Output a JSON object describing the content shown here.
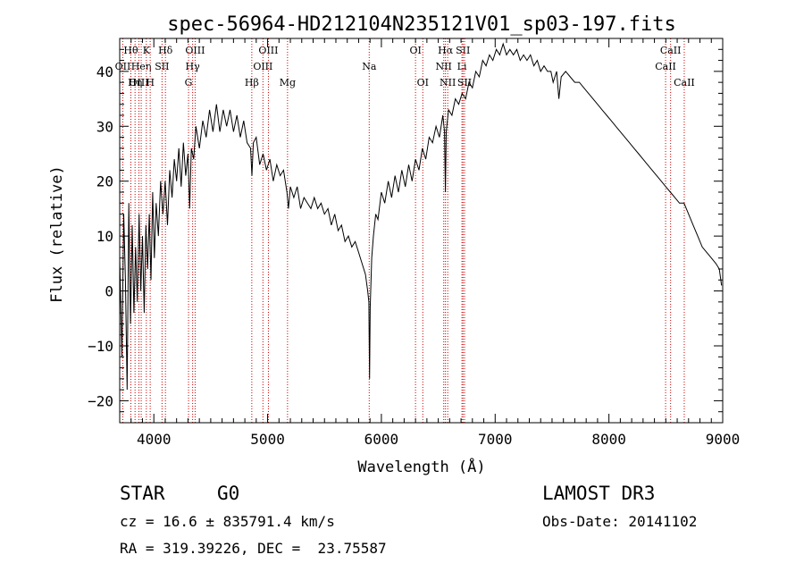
{
  "chart_data": {
    "type": "line",
    "title": "spec-56964-HD212104N235121V01_sp03-197.fits",
    "xlabel": "Wavelength (Å)",
    "ylabel": "Flux (relative)",
    "xlim": [
      3700,
      9000
    ],
    "ylim": [
      -24,
      46
    ],
    "x_ticks": [
      4000,
      5000,
      6000,
      7000,
      8000,
      9000
    ],
    "x_tick_labels": [
      "4000",
      "5000",
      "6000",
      "7000",
      "8000",
      "9000"
    ],
    "y_ticks": [
      -20,
      -10,
      0,
      10,
      20,
      30,
      40
    ],
    "y_tick_labels": [
      "−20",
      "−10",
      "0",
      "10",
      "20",
      "30",
      "40"
    ],
    "line_color": "#000000",
    "marker_color": "#cc0000",
    "series": [
      {
        "name": "flux",
        "points": [
          [
            3700,
            6
          ],
          [
            3720,
            -12
          ],
          [
            3735,
            14
          ],
          [
            3750,
            2
          ],
          [
            3765,
            -18
          ],
          [
            3780,
            16
          ],
          [
            3795,
            -6
          ],
          [
            3810,
            12
          ],
          [
            3825,
            -4
          ],
          [
            3840,
            8
          ],
          [
            3855,
            -2
          ],
          [
            3870,
            14
          ],
          [
            3885,
            0
          ],
          [
            3900,
            10
          ],
          [
            3915,
            -4
          ],
          [
            3930,
            12
          ],
          [
            3945,
            4
          ],
          [
            3960,
            14
          ],
          [
            3975,
            2
          ],
          [
            3990,
            18
          ],
          [
            4005,
            6
          ],
          [
            4020,
            16
          ],
          [
            4040,
            10
          ],
          [
            4060,
            20
          ],
          [
            4080,
            14
          ],
          [
            4100,
            20
          ],
          [
            4120,
            12
          ],
          [
            4140,
            22
          ],
          [
            4160,
            17
          ],
          [
            4180,
            24
          ],
          [
            4200,
            20
          ],
          [
            4220,
            26
          ],
          [
            4240,
            19
          ],
          [
            4260,
            27
          ],
          [
            4280,
            21
          ],
          [
            4300,
            25
          ],
          [
            4315,
            15
          ],
          [
            4330,
            26
          ],
          [
            4350,
            24
          ],
          [
            4370,
            30
          ],
          [
            4400,
            26
          ],
          [
            4430,
            31
          ],
          [
            4460,
            28
          ],
          [
            4490,
            33
          ],
          [
            4520,
            29
          ],
          [
            4550,
            34
          ],
          [
            4580,
            29
          ],
          [
            4610,
            33
          ],
          [
            4640,
            30
          ],
          [
            4670,
            33
          ],
          [
            4700,
            29
          ],
          [
            4730,
            32
          ],
          [
            4760,
            28
          ],
          [
            4790,
            31
          ],
          [
            4820,
            27
          ],
          [
            4850,
            26
          ],
          [
            4862,
            21
          ],
          [
            4875,
            27
          ],
          [
            4900,
            28
          ],
          [
            4930,
            23
          ],
          [
            4960,
            25
          ],
          [
            4990,
            22
          ],
          [
            5020,
            24
          ],
          [
            5050,
            20
          ],
          [
            5080,
            23
          ],
          [
            5110,
            21
          ],
          [
            5140,
            22
          ],
          [
            5170,
            18
          ],
          [
            5183,
            15
          ],
          [
            5200,
            19
          ],
          [
            5230,
            17
          ],
          [
            5260,
            19
          ],
          [
            5290,
            15
          ],
          [
            5320,
            17
          ],
          [
            5350,
            16
          ],
          [
            5380,
            15
          ],
          [
            5410,
            17
          ],
          [
            5440,
            15
          ],
          [
            5470,
            16
          ],
          [
            5500,
            14
          ],
          [
            5530,
            15
          ],
          [
            5560,
            12
          ],
          [
            5590,
            14
          ],
          [
            5620,
            11
          ],
          [
            5650,
            12
          ],
          [
            5680,
            9
          ],
          [
            5710,
            10
          ],
          [
            5740,
            8
          ],
          [
            5770,
            9
          ],
          [
            5800,
            7
          ],
          [
            5830,
            5
          ],
          [
            5860,
            3
          ],
          [
            5880,
            0
          ],
          [
            5890,
            -2
          ],
          [
            5896,
            -16
          ],
          [
            5902,
            -3
          ],
          [
            5915,
            6
          ],
          [
            5930,
            10
          ],
          [
            5950,
            14
          ],
          [
            5970,
            13
          ],
          [
            6000,
            18
          ],
          [
            6030,
            16
          ],
          [
            6060,
            20
          ],
          [
            6090,
            17
          ],
          [
            6120,
            21
          ],
          [
            6150,
            18
          ],
          [
            6180,
            22
          ],
          [
            6210,
            19
          ],
          [
            6240,
            23
          ],
          [
            6270,
            20
          ],
          [
            6300,
            24
          ],
          [
            6330,
            22
          ],
          [
            6360,
            26
          ],
          [
            6390,
            24
          ],
          [
            6420,
            28
          ],
          [
            6450,
            27
          ],
          [
            6480,
            30
          ],
          [
            6510,
            28
          ],
          [
            6540,
            32
          ],
          [
            6555,
            29
          ],
          [
            6563,
            18
          ],
          [
            6570,
            29
          ],
          [
            6590,
            33
          ],
          [
            6620,
            32
          ],
          [
            6650,
            35
          ],
          [
            6680,
            34
          ],
          [
            6710,
            36
          ],
          [
            6740,
            35
          ],
          [
            6770,
            38
          ],
          [
            6800,
            37
          ],
          [
            6830,
            40
          ],
          [
            6860,
            39
          ],
          [
            6890,
            42
          ],
          [
            6920,
            41
          ],
          [
            6950,
            43
          ],
          [
            6980,
            42
          ],
          [
            7010,
            44
          ],
          [
            7040,
            43
          ],
          [
            7070,
            45
          ],
          [
            7100,
            43
          ],
          [
            7130,
            44
          ],
          [
            7160,
            43
          ],
          [
            7190,
            44
          ],
          [
            7220,
            42
          ],
          [
            7250,
            43
          ],
          [
            7280,
            42
          ],
          [
            7310,
            43
          ],
          [
            7340,
            41
          ],
          [
            7370,
            42
          ],
          [
            7400,
            40
          ],
          [
            7430,
            41
          ],
          [
            7460,
            40
          ],
          [
            7490,
            40
          ],
          [
            7510,
            38
          ],
          [
            7540,
            40
          ],
          [
            7560,
            35
          ],
          [
            7580,
            39
          ],
          [
            7620,
            40
          ],
          [
            7660,
            39
          ],
          [
            7700,
            38
          ],
          [
            7740,
            38
          ],
          [
            7780,
            37
          ],
          [
            7820,
            36
          ],
          [
            7860,
            35
          ],
          [
            7900,
            34
          ],
          [
            7940,
            33
          ],
          [
            7980,
            32
          ],
          [
            8020,
            31
          ],
          [
            8060,
            30
          ],
          [
            8100,
            29
          ],
          [
            8140,
            28
          ],
          [
            8180,
            27
          ],
          [
            8220,
            26
          ],
          [
            8260,
            25
          ],
          [
            8300,
            24
          ],
          [
            8340,
            23
          ],
          [
            8380,
            22
          ],
          [
            8420,
            21
          ],
          [
            8460,
            20
          ],
          [
            8500,
            19
          ],
          [
            8540,
            18
          ],
          [
            8580,
            17
          ],
          [
            8620,
            16
          ],
          [
            8660,
            16
          ],
          [
            8700,
            14
          ],
          [
            8740,
            12
          ],
          [
            8780,
            10
          ],
          [
            8820,
            8
          ],
          [
            8860,
            7
          ],
          [
            8900,
            6
          ],
          [
            8940,
            5
          ],
          [
            8970,
            4
          ],
          [
            8990,
            1
          ]
        ]
      }
    ],
    "line_markers": [
      {
        "label": "Hθ",
        "wavelength": 3798,
        "row": 1
      },
      {
        "label": "OII",
        "wavelength": 3727,
        "row": 2
      },
      {
        "label": "OIII",
        "wavelength": 3869,
        "row": 3
      },
      {
        "label": "K",
        "wavelength": 3934,
        "row": 1
      },
      {
        "label": "Heη",
        "wavelength": 3889,
        "row": 2
      },
      {
        "label": "Hη",
        "wavelength": 3835,
        "row": 3
      },
      {
        "label": "SII",
        "wavelength": 4072,
        "row": 2
      },
      {
        "label": "H",
        "wavelength": 3968,
        "row": 3
      },
      {
        "label": "Hδ",
        "wavelength": 4102,
        "row": 1
      },
      {
        "label": "OIII",
        "wavelength": 4363,
        "row": 1
      },
      {
        "label": "Hγ",
        "wavelength": 4341,
        "row": 2
      },
      {
        "label": "G",
        "wavelength": 4305,
        "row": 3
      },
      {
        "label": "Hβ",
        "wavelength": 4861,
        "row": 3
      },
      {
        "label": "OIII",
        "wavelength": 5007,
        "row": 1
      },
      {
        "label": "OIII",
        "wavelength": 4959,
        "row": 2
      },
      {
        "label": "Mg",
        "wavelength": 5175,
        "row": 3
      },
      {
        "label": "Na",
        "wavelength": 5893,
        "row": 2
      },
      {
        "label": "OI",
        "wavelength": 6300,
        "row": 1
      },
      {
        "label": "OI",
        "wavelength": 6364,
        "row": 3
      },
      {
        "label": "Hα",
        "wavelength": 6563,
        "row": 1
      },
      {
        "label": "NII",
        "wavelength": 6548,
        "row": 2
      },
      {
        "label": "NII",
        "wavelength": 6583,
        "row": 3
      },
      {
        "label": "SII",
        "wavelength": 6717,
        "row": 1
      },
      {
        "label": "Li",
        "wavelength": 6708,
        "row": 2
      },
      {
        "label": "SII",
        "wavelength": 6731,
        "row": 3
      },
      {
        "label": "CaII",
        "wavelength": 8542,
        "row": 1
      },
      {
        "label": "CaII",
        "wavelength": 8498,
        "row": 2
      },
      {
        "label": "CaII",
        "wavelength": 8662,
        "row": 3
      }
    ]
  },
  "info": {
    "class": "STAR",
    "subclass": "G0",
    "survey": "LAMOST DR3",
    "cz": "cz = 16.6 ± 835791.4 km/s",
    "obs_date": "Obs-Date: 20141102",
    "coords": "RA = 319.39226, DEC =  23.75587"
  }
}
